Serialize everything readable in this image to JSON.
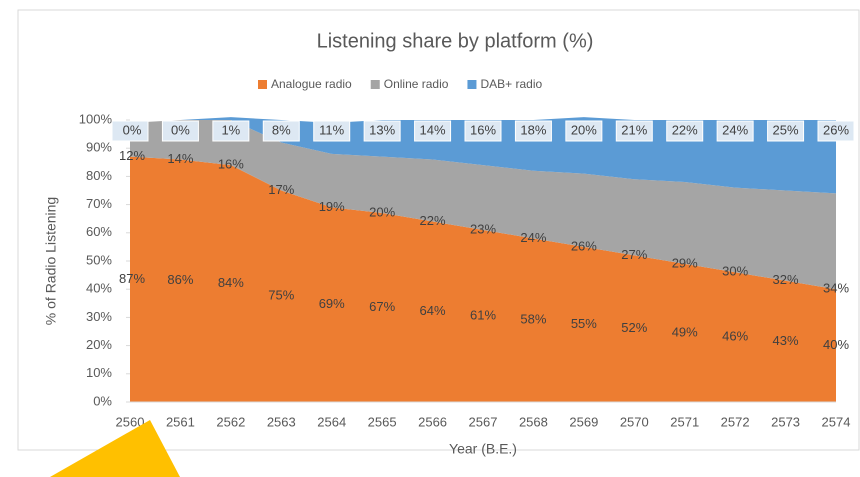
{
  "chart_data": {
    "type": "stacked_area",
    "title": "Listening share by platform (%)",
    "x_label": "Year (B.E.)",
    "y_label": "% of Radio Listening",
    "categories": [
      "2560",
      "2561",
      "2562",
      "2563",
      "2564",
      "2565",
      "2566",
      "2567",
      "2568",
      "2569",
      "2570",
      "2571",
      "2572",
      "2573",
      "2574"
    ],
    "series": [
      {
        "name": "Analogue radio",
        "color": "#ed7d31",
        "values": [
          87,
          86,
          84,
          75,
          69,
          67,
          64,
          61,
          58,
          55,
          52,
          49,
          46,
          43,
          40
        ],
        "value_labels": [
          "87%",
          "86%",
          "84%",
          "75%",
          "69%",
          "67%",
          "64%",
          "61%",
          "58%",
          "55%",
          "52%",
          "49%",
          "46%",
          "43%",
          "40%"
        ]
      },
      {
        "name": "Online radio",
        "color": "#a5a5a5",
        "values": [
          12,
          14,
          16,
          17,
          19,
          20,
          22,
          23,
          24,
          26,
          27,
          29,
          30,
          32,
          34
        ],
        "value_labels": [
          "12%",
          "14%",
          "16%",
          "17%",
          "19%",
          "20%",
          "22%",
          "23%",
          "24%",
          "26%",
          "27%",
          "29%",
          "30%",
          "32%",
          "34%"
        ]
      },
      {
        "name": "DAB+ radio",
        "color": "#5b9bd5",
        "values": [
          0,
          0,
          1,
          8,
          11,
          13,
          14,
          16,
          18,
          20,
          21,
          22,
          24,
          25,
          26
        ],
        "value_labels": [
          "0%",
          "0%",
          "1%",
          "8%",
          "11%",
          "13%",
          "14%",
          "16%",
          "18%",
          "20%",
          "21%",
          "22%",
          "24%",
          "25%",
          "26%"
        ]
      }
    ],
    "ylim": [
      0,
      100
    ],
    "yticks": [
      {
        "value": 0,
        "label": "0%"
      },
      {
        "value": 10,
        "label": "10%"
      },
      {
        "value": 20,
        "label": "20%"
      },
      {
        "value": 30,
        "label": "30%"
      },
      {
        "value": 40,
        "label": "40%"
      },
      {
        "value": 50,
        "label": "50%"
      },
      {
        "value": 60,
        "label": "60%"
      },
      {
        "value": 70,
        "label": "70%"
      },
      {
        "value": 80,
        "label": "80%"
      },
      {
        "value": 90,
        "label": "90%"
      },
      {
        "value": 100,
        "label": "100%"
      }
    ],
    "legend": "top"
  }
}
